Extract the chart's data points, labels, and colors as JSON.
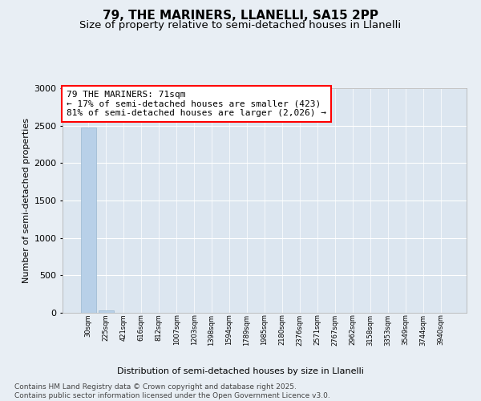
{
  "title_line1": "79, THE MARINERS, LLANELLI, SA15 2PP",
  "title_line2": "Size of property relative to semi-detached houses in Llanelli",
  "xlabel": "Distribution of semi-detached houses by size in Llanelli",
  "ylabel": "Number of semi-detached properties",
  "categories": [
    "30sqm",
    "225sqm",
    "421sqm",
    "616sqm",
    "812sqm",
    "1007sqm",
    "1203sqm",
    "1398sqm",
    "1594sqm",
    "1789sqm",
    "1985sqm",
    "2180sqm",
    "2376sqm",
    "2571sqm",
    "2767sqm",
    "2962sqm",
    "3158sqm",
    "3353sqm",
    "3549sqm",
    "3744sqm",
    "3940sqm"
  ],
  "values": [
    2480,
    30,
    0,
    0,
    0,
    0,
    0,
    0,
    0,
    0,
    0,
    0,
    0,
    0,
    0,
    0,
    0,
    0,
    0,
    0,
    0
  ],
  "bar_color": "#b8d0e8",
  "bar_edge_color": "#9ab8d0",
  "ylim": [
    0,
    3000
  ],
  "yticks": [
    0,
    500,
    1000,
    1500,
    2000,
    2500,
    3000
  ],
  "annotation_text": "79 THE MARINERS: 71sqm\n← 17% of semi-detached houses are smaller (423)\n81% of semi-detached houses are larger (2,026) →",
  "footer_line1": "Contains HM Land Registry data © Crown copyright and database right 2025.",
  "footer_line2": "Contains public sector information licensed under the Open Government Licence v3.0.",
  "bg_color": "#e8eef4",
  "plot_bg_color": "#dce6f0",
  "grid_color": "#ffffff",
  "title_fontsize": 11,
  "subtitle_fontsize": 9.5,
  "annotation_fontsize": 8,
  "footer_fontsize": 6.5,
  "ylabel_fontsize": 8,
  "xlabel_fontsize": 8
}
